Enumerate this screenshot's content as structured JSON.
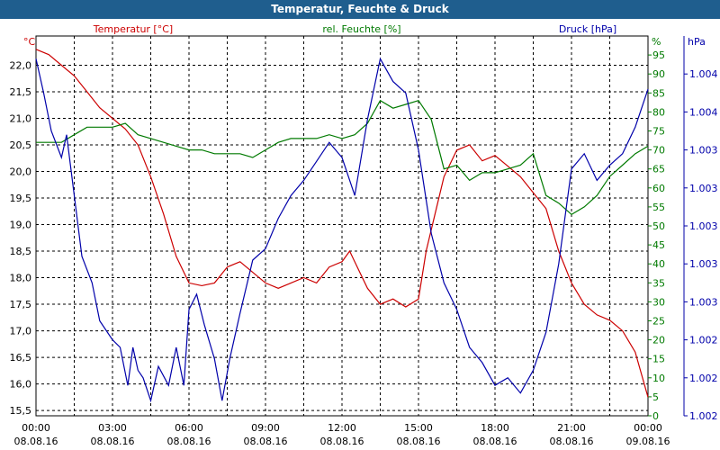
{
  "window": {
    "title": "Temperatur, Feuchte & Druck"
  },
  "chart_data": {
    "type": "line",
    "title": "Temperatur, Feuchte & Druck",
    "colors": {
      "temp": "#cc0000",
      "hum": "#007a00",
      "press": "#0000aa",
      "grid": "#000000"
    },
    "grid": true,
    "legend": {
      "temp": "Temperatur [°C]",
      "hum": "rel. Feuchte [%]",
      "press": "Druck [hPa]"
    },
    "units": {
      "temp": "°C",
      "hum": "%",
      "press": "hPa"
    },
    "x_ticks": [
      {
        "time": "00:00",
        "date": "08.08.16"
      },
      {
        "time": "03:00",
        "date": "08.08.16"
      },
      {
        "time": "06:00",
        "date": "08.08.16"
      },
      {
        "time": "09:00",
        "date": "08.08.16"
      },
      {
        "time": "12:00",
        "date": "08.08.16"
      },
      {
        "time": "15:00",
        "date": "08.08.16"
      },
      {
        "time": "18:00",
        "date": "08.08.16"
      },
      {
        "time": "21:00",
        "date": "08.08.16"
      },
      {
        "time": "00:00",
        "date": "09.08.16"
      }
    ],
    "xlim_hours": [
      0,
      24
    ],
    "temp_ylim": [
      15.4,
      22.55
    ],
    "temp_ticks": [
      "15,5",
      "16,0",
      "16,5",
      "17,0",
      "17,5",
      "18,0",
      "18,5",
      "19,0",
      "19,5",
      "20,0",
      "20,5",
      "21,0",
      "21,5",
      "22,0"
    ],
    "hum_ylim": [
      0,
      100
    ],
    "hum_ticks": [
      "0",
      "5",
      "10",
      "15",
      "20",
      "25",
      "30",
      "35",
      "40",
      "45",
      "50",
      "55",
      "60",
      "65",
      "70",
      "75",
      "80",
      "85",
      "90",
      "95"
    ],
    "press_ticks": [
      "1.002",
      "1.002",
      "1.002",
      "1.003",
      "1.003",
      "1.003",
      "1.003",
      "1.003",
      "1.004",
      "1.004"
    ],
    "series": [
      {
        "name": "Temperatur [°C]",
        "axis": "temp",
        "points": [
          [
            0,
            22.3
          ],
          [
            0.5,
            22.2
          ],
          [
            1,
            22.0
          ],
          [
            1.5,
            21.8
          ],
          [
            2,
            21.5
          ],
          [
            2.5,
            21.2
          ],
          [
            3,
            21.0
          ],
          [
            3.5,
            20.8
          ],
          [
            4,
            20.5
          ],
          [
            4.5,
            19.9
          ],
          [
            5,
            19.2
          ],
          [
            5.5,
            18.4
          ],
          [
            6,
            17.9
          ],
          [
            6.5,
            17.85
          ],
          [
            7,
            17.9
          ],
          [
            7.5,
            18.2
          ],
          [
            8,
            18.3
          ],
          [
            8.5,
            18.1
          ],
          [
            9,
            17.9
          ],
          [
            9.5,
            17.8
          ],
          [
            10,
            17.9
          ],
          [
            10.5,
            18.0
          ],
          [
            11,
            17.9
          ],
          [
            11.5,
            18.2
          ],
          [
            12,
            18.3
          ],
          [
            12.3,
            18.5
          ],
          [
            12.7,
            18.1
          ],
          [
            13,
            17.8
          ],
          [
            13.5,
            17.5
          ],
          [
            14,
            17.6
          ],
          [
            14.5,
            17.45
          ],
          [
            15,
            17.6
          ],
          [
            15.3,
            18.5
          ],
          [
            15.7,
            19.3
          ],
          [
            16,
            19.9
          ],
          [
            16.5,
            20.4
          ],
          [
            17,
            20.5
          ],
          [
            17.5,
            20.2
          ],
          [
            18,
            20.3
          ],
          [
            18.5,
            20.1
          ],
          [
            19,
            19.9
          ],
          [
            19.5,
            19.6
          ],
          [
            20,
            19.3
          ],
          [
            20.5,
            18.5
          ],
          [
            21,
            17.9
          ],
          [
            21.5,
            17.5
          ],
          [
            22,
            17.3
          ],
          [
            22.5,
            17.2
          ],
          [
            23,
            17.0
          ],
          [
            23.5,
            16.6
          ],
          [
            24,
            15.75
          ]
        ]
      },
      {
        "name": "rel. Feuchte [%]",
        "axis": "hum",
        "points": [
          [
            0,
            72
          ],
          [
            0.5,
            72
          ],
          [
            1,
            72
          ],
          [
            1.5,
            74
          ],
          [
            2,
            76
          ],
          [
            2.5,
            76
          ],
          [
            3,
            76
          ],
          [
            3.5,
            77
          ],
          [
            4,
            74
          ],
          [
            4.5,
            73
          ],
          [
            5,
            72
          ],
          [
            5.5,
            71
          ],
          [
            6,
            70
          ],
          [
            6.5,
            70
          ],
          [
            7,
            69
          ],
          [
            7.5,
            69
          ],
          [
            8,
            69
          ],
          [
            8.5,
            68
          ],
          [
            9,
            70
          ],
          [
            9.5,
            72
          ],
          [
            10,
            73
          ],
          [
            10.5,
            73
          ],
          [
            11,
            73
          ],
          [
            11.5,
            74
          ],
          [
            12,
            73
          ],
          [
            12.5,
            74
          ],
          [
            13,
            77
          ],
          [
            13.5,
            83
          ],
          [
            14,
            81
          ],
          [
            14.5,
            82
          ],
          [
            15,
            83
          ],
          [
            15.5,
            78
          ],
          [
            16,
            65
          ],
          [
            16.5,
            66
          ],
          [
            17,
            62
          ],
          [
            17.5,
            64
          ],
          [
            18,
            64
          ],
          [
            18.5,
            65
          ],
          [
            19,
            66
          ],
          [
            19.5,
            69
          ],
          [
            20,
            58
          ],
          [
            20.5,
            56
          ],
          [
            21,
            53
          ],
          [
            21.5,
            55
          ],
          [
            22,
            58
          ],
          [
            22.5,
            63
          ],
          [
            23,
            66
          ],
          [
            23.5,
            69
          ],
          [
            24,
            71
          ]
        ]
      },
      {
        "name": "Druck [hPa]",
        "axis": "hum",
        "points": [
          [
            0,
            94
          ],
          [
            0.3,
            85
          ],
          [
            0.6,
            75
          ],
          [
            1,
            68
          ],
          [
            1.2,
            74
          ],
          [
            1.5,
            58
          ],
          [
            1.8,
            42
          ],
          [
            2.2,
            35
          ],
          [
            2.5,
            25
          ],
          [
            3,
            20
          ],
          [
            3.3,
            18
          ],
          [
            3.6,
            8
          ],
          [
            3.8,
            18
          ],
          [
            4,
            12
          ],
          [
            4.2,
            10
          ],
          [
            4.5,
            4
          ],
          [
            4.8,
            13
          ],
          [
            5.2,
            8
          ],
          [
            5.5,
            18
          ],
          [
            5.8,
            8
          ],
          [
            6,
            28
          ],
          [
            6.3,
            32
          ],
          [
            6.6,
            24
          ],
          [
            7,
            15
          ],
          [
            7.3,
            4
          ],
          [
            7.6,
            15
          ],
          [
            8,
            27
          ],
          [
            8.5,
            41
          ],
          [
            9,
            44
          ],
          [
            9.5,
            52
          ],
          [
            10,
            58
          ],
          [
            10.5,
            62
          ],
          [
            11,
            67
          ],
          [
            11.5,
            72
          ],
          [
            12,
            68
          ],
          [
            12.5,
            58
          ],
          [
            13,
            78
          ],
          [
            13.5,
            94
          ],
          [
            14,
            88
          ],
          [
            14.5,
            85
          ],
          [
            15,
            70
          ],
          [
            15.5,
            48
          ],
          [
            16,
            35
          ],
          [
            16.5,
            28
          ],
          [
            17,
            18
          ],
          [
            17.5,
            14
          ],
          [
            18,
            8
          ],
          [
            18.5,
            10
          ],
          [
            19,
            6
          ],
          [
            19.5,
            12
          ],
          [
            20,
            22
          ],
          [
            20.5,
            40
          ],
          [
            21,
            65
          ],
          [
            21.5,
            69
          ],
          [
            22,
            62
          ],
          [
            22.5,
            66
          ],
          [
            23,
            69
          ],
          [
            23.5,
            76
          ],
          [
            24,
            86
          ]
        ]
      }
    ]
  }
}
